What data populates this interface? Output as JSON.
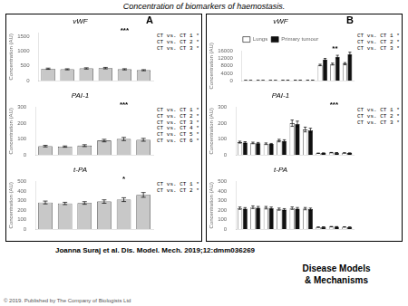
{
  "title": "Concentration of biomarkers of haemostasis.",
  "footer": "Joanna Suraj et al. Dis. Model. Mech. 2019;12:dmm036269",
  "copyright": "© 2019. Published by The Company of Biologists Ltd",
  "logo_text": [
    "Disease Models",
    "& Mechanisms"
  ],
  "chart_data": [
    {
      "type": "bar",
      "title": "vWF",
      "panel_label": "A",
      "ylabel": "Concentration (AU)",
      "categories": [
        null,
        null,
        null,
        null,
        null,
        null
      ],
      "values": [
        400,
        380,
        410,
        420,
        380,
        350
      ],
      "errors": [
        20,
        18,
        22,
        25,
        20,
        18
      ],
      "color": "#c8c8c8",
      "ylim": [
        0,
        1600
      ],
      "yticks": [
        0,
        500,
        1000,
        1500
      ],
      "significance": "***",
      "annotations": [
        "CT vs. CT 1 *",
        "CT vs. CT 2 *",
        "CT vs. CT 3 *"
      ],
      "grid": false,
      "legend": false,
      "tick_labels": "y"
    },
    {
      "type": "bar",
      "title": "PAI-1",
      "ylabel": "Concentration (AU)",
      "categories": [
        null,
        null,
        null,
        null,
        null,
        null
      ],
      "values": [
        55,
        52,
        58,
        90,
        100,
        95
      ],
      "errors": [
        5,
        4,
        6,
        8,
        10,
        9
      ],
      "color": "#c8c8c8",
      "ylim": [
        0,
        300
      ],
      "yticks": [
        0,
        100,
        200,
        300
      ],
      "significance": "***",
      "annotations": [
        "CT vs. CT 1 *",
        "CT vs. CT 2 *",
        "CT vs. CT 3 *",
        "CT vs. CT 4 *",
        "CT vs. CT 5 *",
        "CT vs. CT 6 *"
      ],
      "grid": false,
      "legend": false,
      "tick_labels": "y"
    },
    {
      "type": "bar",
      "title": "t-PA",
      "ylabel": "Concentration (AU)",
      "categories": [
        null,
        null,
        null,
        null,
        null,
        null
      ],
      "values": [
        280,
        270,
        275,
        290,
        310,
        360
      ],
      "errors": [
        15,
        12,
        14,
        18,
        20,
        25
      ],
      "color": "#c8c8c8",
      "ylim": [
        0,
        500
      ],
      "yticks": [
        0,
        100,
        200,
        300,
        400,
        500
      ],
      "significance": "*",
      "annotations": [
        "CT vs. CT 1 *",
        "CT vs. CT 2 *"
      ],
      "grid": false,
      "legend": false,
      "tick_labels": "y"
    },
    {
      "type": "bar",
      "title": "vWF",
      "panel_label": "B",
      "ylabel": "Concentration (AU)",
      "categories": [
        null,
        null,
        null,
        null,
        null,
        null,
        null,
        null,
        null
      ],
      "series": [
        {
          "name": "Lungs",
          "color": "#ffffff",
          "values": [
            80,
            90,
            85,
            150,
            160,
            145,
            8500,
            9000,
            9200
          ],
          "errors": [
            8,
            9,
            7,
            12,
            14,
            11,
            400,
            500,
            600
          ]
        },
        {
          "name": "Primary tumour",
          "color": "#101010",
          "values": [
            75,
            85,
            80,
            145,
            155,
            140,
            11500,
            13000,
            14500
          ],
          "errors": [
            7,
            8,
            6,
            11,
            13,
            10,
            600,
            800,
            1000
          ]
        }
      ],
      "ylim": [
        0,
        16000
      ],
      "yticks": [
        0,
        4000,
        8000,
        12000,
        16000
      ],
      "significance": "**",
      "annotations": [
        "CT vs. CT 1 *",
        "CT vs. CT 2 *",
        "CT vs. CT 3 *"
      ],
      "grid": false,
      "legend": "top",
      "tick_labels": "y"
    },
    {
      "type": "bar",
      "title": "PAI-1",
      "ylabel": "Concentration (AU)",
      "categories": [
        null,
        null,
        null,
        null,
        null,
        null,
        null,
        null,
        null
      ],
      "series": [
        {
          "name": "Lungs",
          "color": "#ffffff",
          "values": [
            80,
            75,
            70,
            90,
            200,
            160,
            10,
            14,
            12
          ],
          "errors": [
            6,
            5,
            5,
            8,
            20,
            15,
            1,
            1,
            1
          ]
        },
        {
          "name": "Primary tumour",
          "color": "#101010",
          "values": [
            78,
            73,
            68,
            88,
            195,
            155,
            11,
            13,
            11
          ],
          "errors": [
            5,
            5,
            4,
            7,
            18,
            13,
            1,
            1,
            1
          ]
        }
      ],
      "ylim": [
        0,
        300
      ],
      "yticks": [
        0,
        100,
        200,
        300
      ],
      "significance": "***",
      "annotations": [
        "CT vs. CT 1 *",
        "CT vs. CT 2 *",
        "CT vs. CT 3 *"
      ],
      "grid": false,
      "legend": false,
      "tick_labels": "y"
    },
    {
      "type": "bar",
      "title": "t-PA",
      "ylabel": "Concentration (AU)",
      "categories": [
        null,
        null,
        null,
        null,
        null,
        null,
        null,
        null,
        null
      ],
      "series": [
        {
          "name": "Lungs",
          "color": "#ffffff",
          "values": [
            220,
            230,
            225,
            210,
            220,
            215,
            20,
            25,
            22
          ],
          "errors": [
            12,
            14,
            13,
            11,
            13,
            12,
            2,
            2,
            2
          ]
        },
        {
          "name": "Primary tumour",
          "color": "#101010",
          "values": [
            215,
            225,
            220,
            205,
            215,
            210,
            22,
            24,
            20
          ],
          "errors": [
            11,
            13,
            12,
            10,
            12,
            11,
            2,
            2,
            2
          ]
        }
      ],
      "ylim": [
        0,
        500
      ],
      "yticks": [
        0,
        100,
        200,
        300,
        400,
        500
      ],
      "grid": false,
      "legend": false,
      "tick_labels": "y"
    }
  ]
}
